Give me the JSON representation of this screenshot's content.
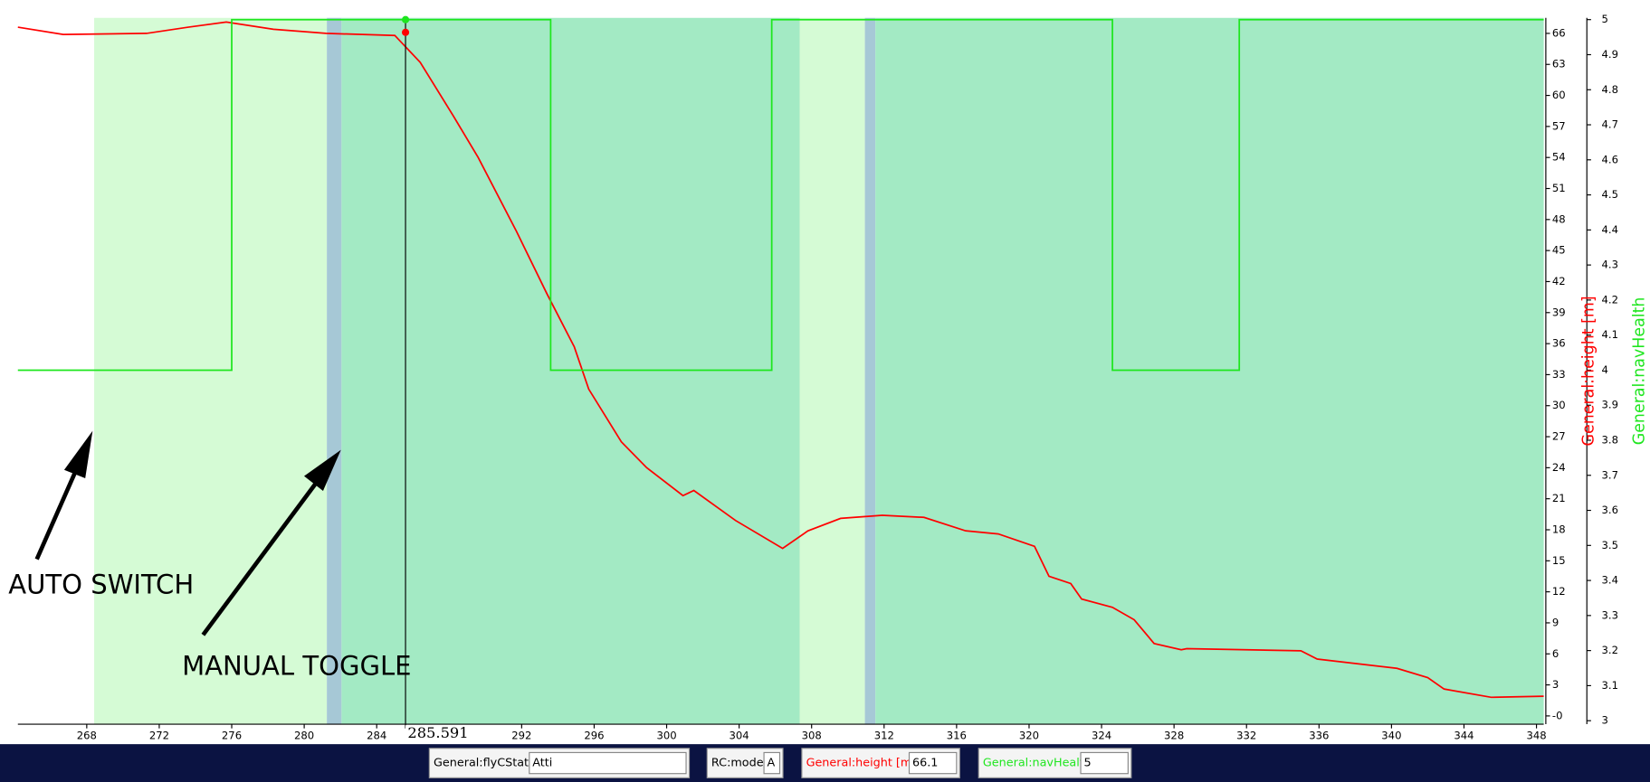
{
  "chart_data": {
    "type": "line",
    "xlim": [
      264.2,
      348.4
    ],
    "xticks": [
      268,
      272,
      276,
      280,
      284,
      292,
      296,
      300,
      304,
      308,
      312,
      316,
      320,
      324,
      328,
      332,
      336,
      340,
      344,
      348
    ],
    "ylim": [
      -0.8,
      67.5
    ],
    "yticks": [
      {
        "value": 0,
        "label": "-0"
      },
      3,
      6,
      9,
      12,
      15,
      18,
      21,
      24,
      27,
      30,
      33,
      36,
      39,
      42,
      45,
      48,
      51,
      54,
      57,
      60,
      63,
      66
    ],
    "y2lim": [
      2.99,
      5.005
    ],
    "y2ticks": [
      3,
      3.1,
      3.2,
      3.3,
      3.4,
      3.5,
      3.6,
      3.7,
      3.8,
      3.9,
      4,
      4.1,
      4.2,
      4.3,
      4.4,
      4.5,
      4.6,
      4.7,
      4.8,
      4.9,
      5
    ],
    "ylabel": "General:height [m]",
    "y2label": "General:navHealth",
    "regions": [
      {
        "start": 268.41,
        "end": 281.25,
        "color": "#d5fbd5"
      },
      {
        "start": 281.25,
        "end": 282.06,
        "color": "#a6c8d6"
      },
      {
        "start": 282.06,
        "end": 307.34,
        "color": "#a3eac4"
      },
      {
        "start": 307.34,
        "end": 310.94,
        "color": "#d5fbd5"
      },
      {
        "start": 310.94,
        "end": 311.52,
        "color": "#a6c8d6"
      },
      {
        "start": 311.52,
        "end": 348.4,
        "color": "#a3eac4"
      }
    ],
    "series": [
      {
        "name": "General:height [m]",
        "color": "#ff0000",
        "axis": "y",
        "x": [
          264.2,
          266.7,
          271.3,
          273.6,
          275.7,
          278.3,
          281.2,
          285.0,
          286.4,
          288.2,
          289.6,
          291.7,
          293.4,
          294.9,
          295.7,
          297.5,
          298.9,
          300.9,
          301.5,
          303.8,
          306.4,
          307.8,
          309.6,
          311.9,
          314.2,
          316.5,
          318.3,
          320.3,
          321.1,
          322.3,
          322.9,
          324.6,
          325.8,
          326.9,
          328.4,
          328.7,
          335.0,
          335.9,
          340.3,
          342.0,
          342.9,
          345.5,
          348.4
        ],
        "values": [
          66.6,
          65.9,
          66.0,
          66.6,
          67.1,
          66.4,
          66.0,
          65.8,
          63.2,
          58.1,
          54.0,
          46.9,
          40.8,
          35.7,
          31.6,
          26.5,
          24.0,
          21.3,
          21.8,
          18.9,
          16.2,
          17.9,
          19.1,
          19.4,
          19.2,
          17.9,
          17.6,
          16.4,
          13.5,
          12.8,
          11.3,
          10.5,
          9.3,
          7.0,
          6.4,
          6.5,
          6.3,
          5.5,
          4.6,
          3.7,
          2.6,
          1.8,
          1.9
        ]
      },
      {
        "name": "General:navHealth",
        "color": "#1ee61e",
        "axis": "y2",
        "x": [
          264.2,
          276.0,
          276.0,
          293.6,
          293.6,
          305.8,
          305.8,
          324.6,
          324.6,
          331.6,
          331.6,
          348.4
        ],
        "values": [
          4,
          4,
          5,
          5,
          4,
          4,
          5,
          5,
          4,
          4,
          5,
          5
        ]
      }
    ],
    "cursor": 285.591,
    "annotations": [
      "AUTO SWITCH",
      "MANUAL TOGGLE"
    ]
  },
  "readouts": [
    {
      "label": "General:flyCState",
      "value": "Atti"
    },
    {
      "label": "RC:mode",
      "value": "A"
    },
    {
      "label": "General:height [m]",
      "value": 66.1
    },
    {
      "label": "General:navHealth",
      "value": 5
    }
  ]
}
